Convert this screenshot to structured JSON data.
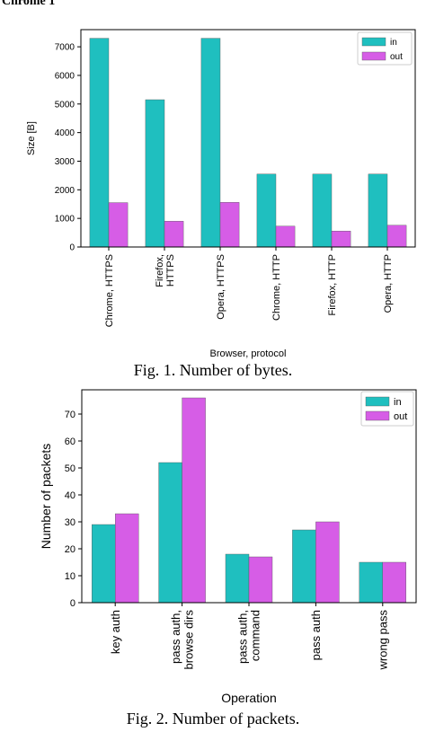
{
  "page": {
    "top_fragment": "Chrome 1 ",
    "caption1": "Fig. 1. Number of bytes.",
    "caption2": "Fig. 2. Number of packets."
  },
  "colors": {
    "in": "#1fbfbf",
    "out": "#d65de6"
  },
  "chart_data": [
    {
      "type": "bar",
      "title": "",
      "xlabel": "Browser, protocol",
      "ylabel": "Size [B]",
      "ylim": [
        0,
        7600
      ],
      "yticks": [
        0,
        1000,
        2000,
        3000,
        4000,
        5000,
        6000,
        7000
      ],
      "categories": [
        [
          "Chrome, HTTPS"
        ],
        [
          "Firefox,",
          "HTTPS"
        ],
        [
          "Opera, HTTPS"
        ],
        [
          "Chrome, HTTP"
        ],
        [
          "Firefox, HTTP"
        ],
        [
          "Opera, HTTP"
        ]
      ],
      "series": [
        {
          "name": "in",
          "values": [
            7300,
            5150,
            7300,
            2550,
            2550,
            2550
          ]
        },
        {
          "name": "out",
          "values": [
            1550,
            900,
            1560,
            730,
            560,
            760
          ]
        }
      ],
      "legend": "top-right",
      "grid": false
    },
    {
      "type": "bar",
      "title": "",
      "xlabel": "Operation",
      "ylabel": "Number of packets",
      "ylim": [
        0,
        79
      ],
      "yticks": [
        0,
        10,
        20,
        30,
        40,
        50,
        60,
        70
      ],
      "categories": [
        [
          "key auth"
        ],
        [
          "pass auth,",
          "browse dirs"
        ],
        [
          "pass auth,",
          "command"
        ],
        [
          "pass auth"
        ],
        [
          "wrong pass"
        ]
      ],
      "series": [
        {
          "name": "in",
          "values": [
            29,
            52,
            18,
            27,
            15
          ]
        },
        {
          "name": "out",
          "values": [
            33,
            76,
            17,
            30,
            15
          ]
        }
      ],
      "legend": "top-right",
      "grid": false
    }
  ]
}
